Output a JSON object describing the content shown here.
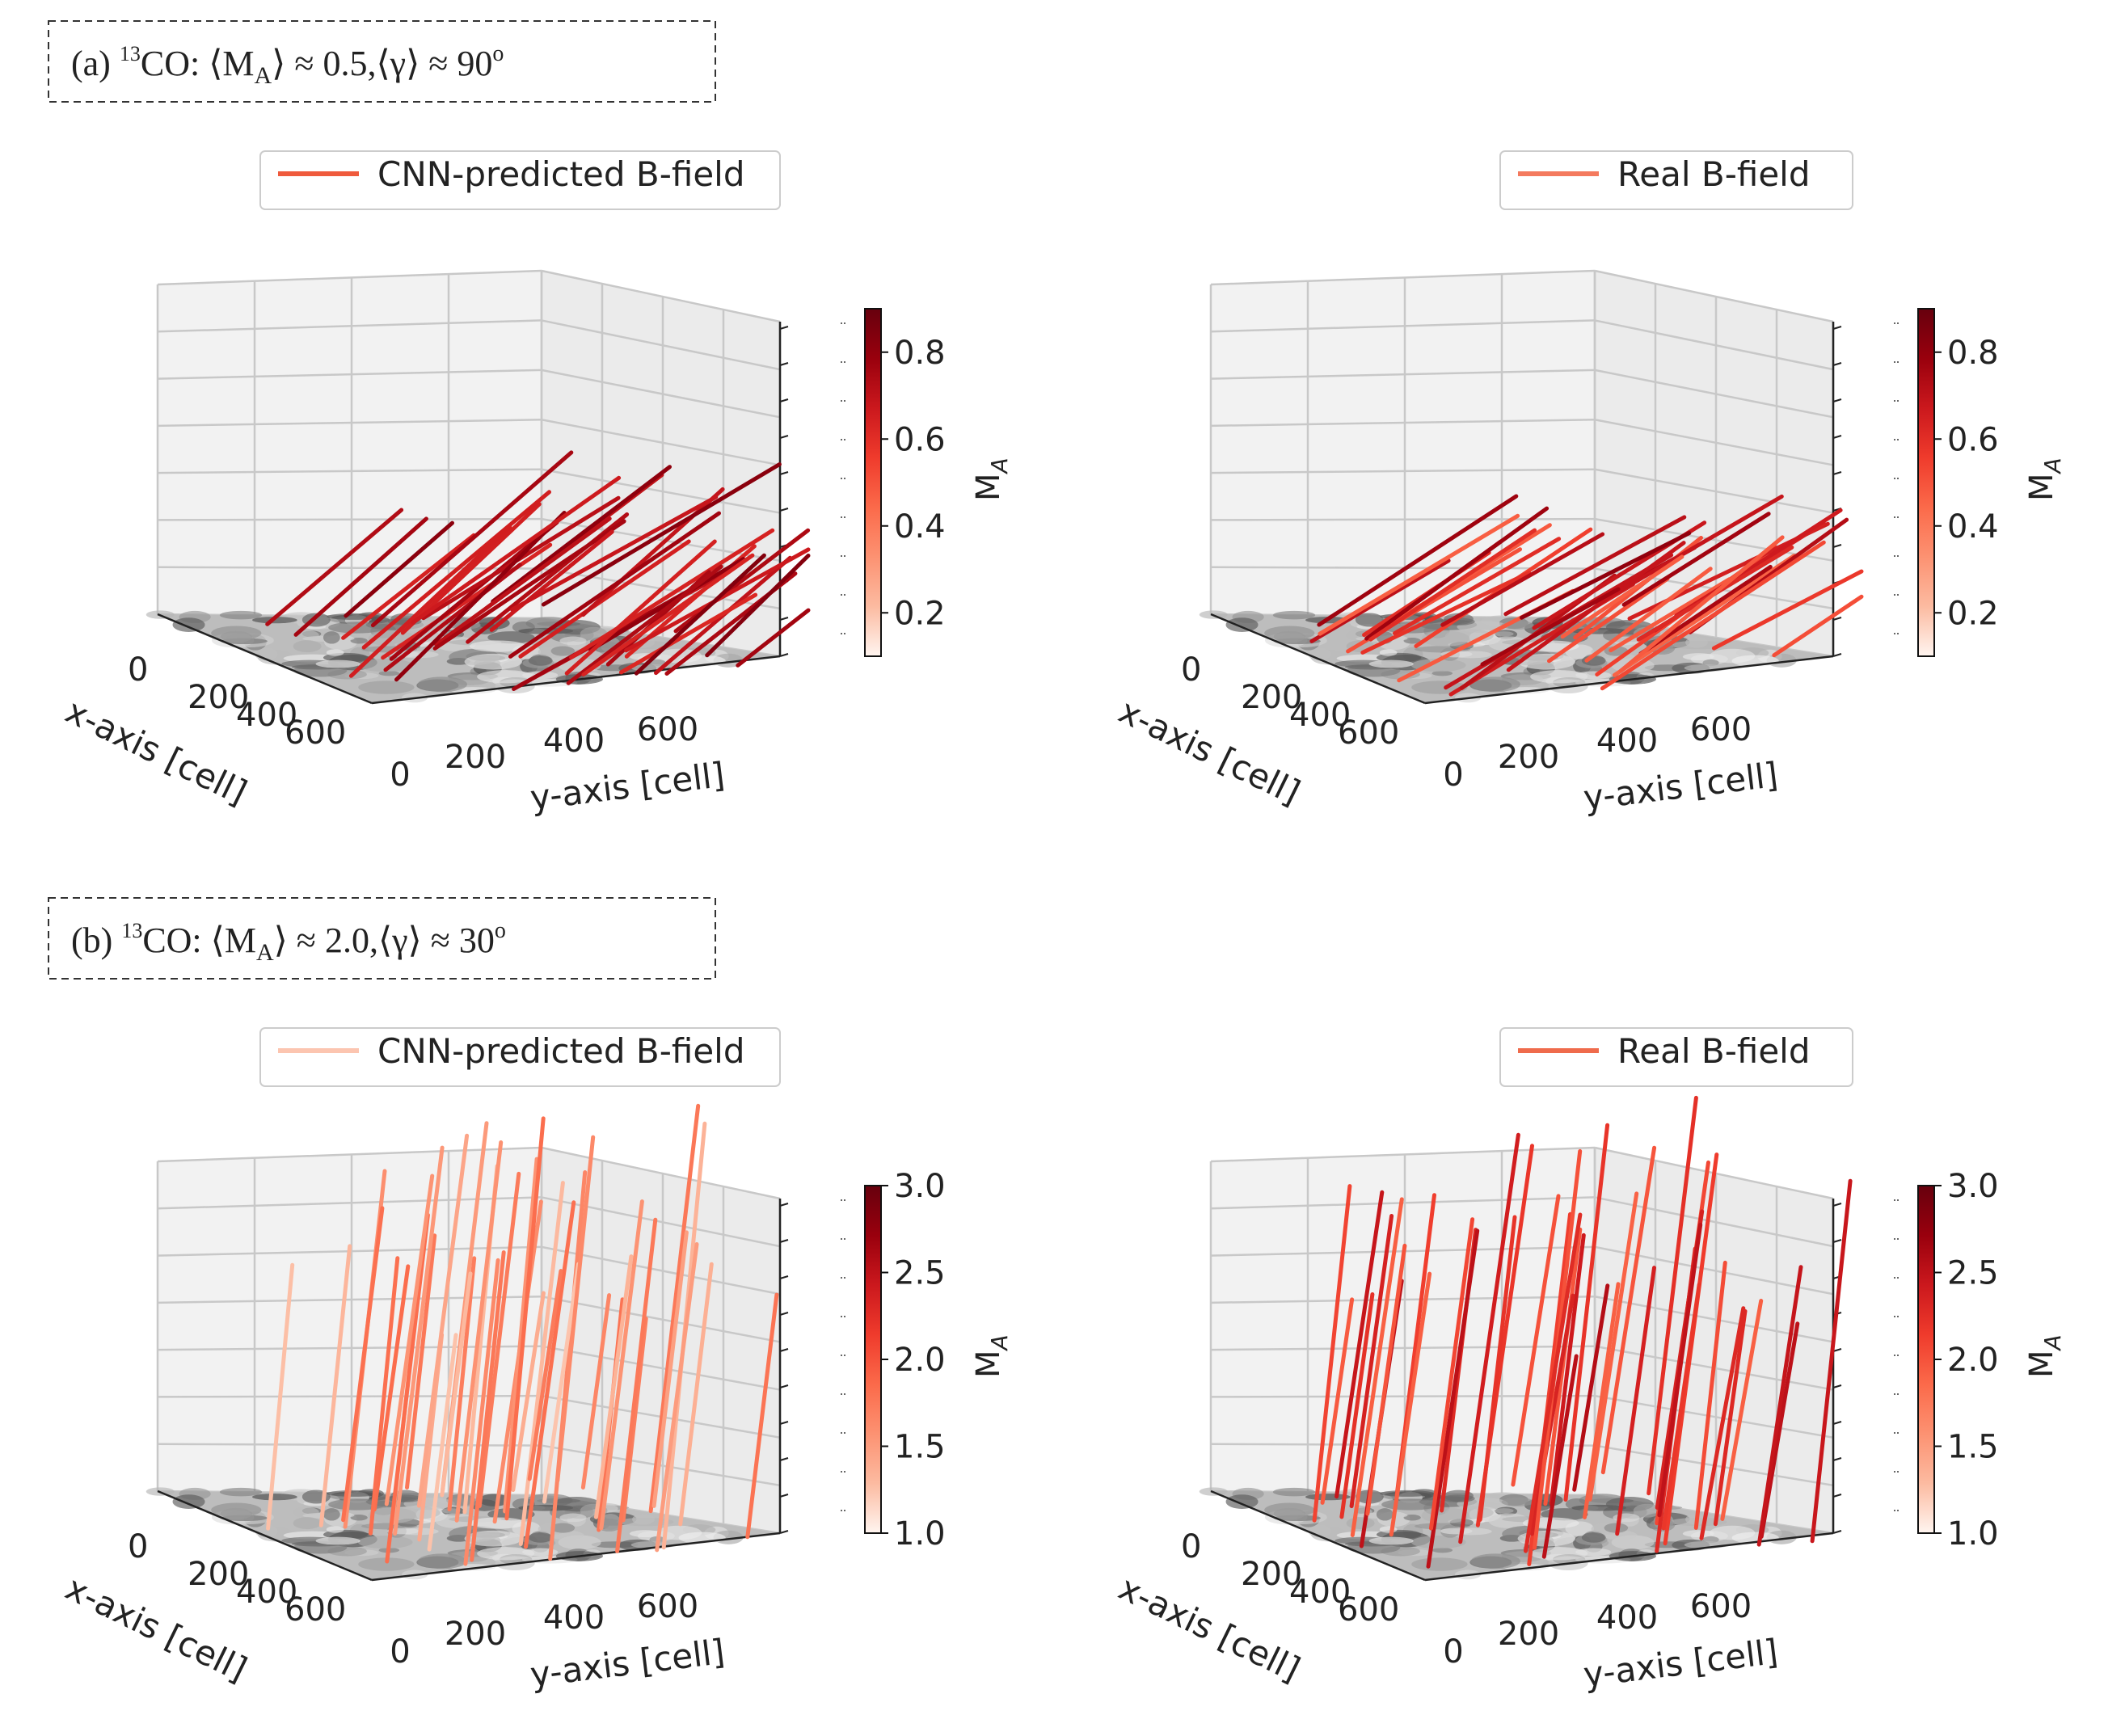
{
  "colors": {
    "pane_fill": "#f2f2f2",
    "grid": "#c8c8c8",
    "axis": "#222222",
    "cmap": [
      "#fff5f0",
      "#fcbba1",
      "#fc9272",
      "#fb6a4a",
      "#ef3b2c",
      "#cb181d",
      "#99000d",
      "#67000d"
    ]
  },
  "chart_data": [
    {
      "type": "3d-vector-field",
      "panel_label": {
        "prefix": "(a) ",
        "sup": "13",
        "text": "CO: ⟨M",
        "sub": "A",
        "rest": "⟩ ≈ 0.5,⟨γ⟩ ≈ 90",
        "deg": "o"
      },
      "subplots": [
        {
          "legend": "CNN-predicted B-field",
          "legend_color": "#ef5a3c",
          "xlabel": "x-axis [cell]",
          "ylabel": "y-axis [cell]",
          "xticks": [
            "0",
            "200",
            "400",
            "600"
          ],
          "yticks": [
            "0",
            "200",
            "400",
            "600"
          ],
          "colorbar": {
            "label": "M",
            "label_sub": "A",
            "ticks": [
              "0.2",
              "0.4",
              "0.6",
              "0.8"
            ],
            "tick_values": [
              0.2,
              0.4,
              0.6,
              0.8
            ],
            "range": [
              0.1,
              0.9
            ]
          },
          "segments": {
            "count": 42,
            "dx": 0.55,
            "dz": 0.42,
            "cmin": 0.65,
            "cmax": 0.92,
            "seed": 11
          }
        },
        {
          "legend": "Real B-field",
          "legend_color": "#f47a5e",
          "xlabel": "x-axis [cell]",
          "ylabel": "y-axis [cell]",
          "xticks": [
            "0",
            "200",
            "400",
            "600"
          ],
          "yticks": [
            "0",
            "200",
            "400",
            "600"
          ],
          "colorbar": {
            "label": "M",
            "label_sub": "A",
            "ticks": [
              "0.2",
              "0.4",
              "0.6",
              "0.8"
            ],
            "tick_values": [
              0.2,
              0.4,
              0.6,
              0.8
            ],
            "range": [
              0.1,
              0.9
            ]
          },
          "segments": {
            "count": 42,
            "dx": 0.55,
            "dz": 0.36,
            "cmin": 0.45,
            "cmax": 0.88,
            "seed": 23
          }
        }
      ]
    },
    {
      "type": "3d-vector-field",
      "panel_label": {
        "prefix": "(b) ",
        "sup": "13",
        "text": "CO: ⟨M",
        "sub": "A",
        "rest": "⟩ ≈ 2.0,⟨γ⟩ ≈ 30",
        "deg": "o"
      },
      "subplots": [
        {
          "legend": "CNN-predicted B-field",
          "legend_color": "#fcc5b0",
          "xlabel": "x-axis [cell]",
          "ylabel": "y-axis [cell]",
          "xticks": [
            "0",
            "200",
            "400",
            "600"
          ],
          "yticks": [
            "0",
            "200",
            "400",
            "600"
          ],
          "colorbar": {
            "label": "M",
            "label_sub": "A",
            "ticks": [
              "1.0",
              "1.5",
              "2.0",
              "2.5",
              "3.0"
            ],
            "tick_values": [
              1.0,
              1.5,
              2.0,
              2.5,
              3.0
            ],
            "range": [
              1.0,
              3.0
            ]
          },
          "segments": {
            "count": 44,
            "dx": 0.12,
            "dz": 1.05,
            "cmin": 0.12,
            "cmax": 0.42,
            "seed": 37
          }
        },
        {
          "legend": "Real B-field",
          "legend_color": "#ef6b4c",
          "xlabel": "x-axis [cell]",
          "ylabel": "y-axis [cell]",
          "xticks": [
            "0",
            "200",
            "400",
            "600"
          ],
          "yticks": [
            "0",
            "200",
            "400",
            "600"
          ],
          "colorbar": {
            "label": "M",
            "label_sub": "A",
            "ticks": [
              "1.0",
              "1.5",
              "2.0",
              "2.5",
              "3.0"
            ],
            "tick_values": [
              1.0,
              1.5,
              2.0,
              2.5,
              3.0
            ],
            "range": [
              1.0,
              3.0
            ]
          },
          "segments": {
            "count": 44,
            "dx": 0.14,
            "dz": 1.08,
            "cmin": 0.45,
            "cmax": 0.78,
            "seed": 51
          }
        }
      ]
    }
  ]
}
